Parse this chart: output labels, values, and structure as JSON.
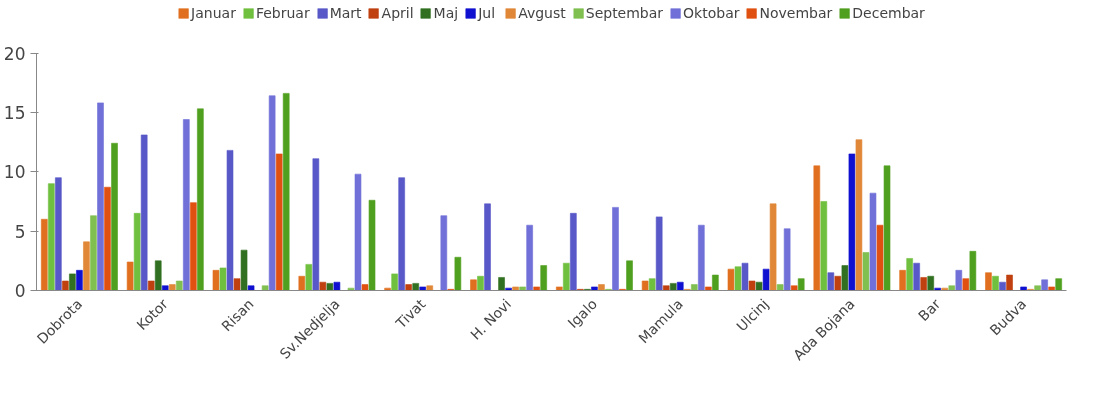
{
  "chart_data": {
    "type": "bar",
    "categories": [
      "Dobrota",
      "Kotor",
      "Risan",
      "Sv.Nedjelja",
      "Tivat",
      "H. Novi",
      "Igalo",
      "Mamula",
      "Ulcinj",
      "Ada Bojana",
      "Bar",
      "Budva"
    ],
    "series": [
      {
        "name": "Januar",
        "color": "#e07020",
        "values": [
          6.0,
          2.4,
          1.7,
          1.2,
          0.2,
          0.9,
          0.3,
          0.8,
          1.8,
          10.5,
          1.7,
          1.5
        ]
      },
      {
        "name": "Februar",
        "color": "#70c040",
        "values": [
          9.0,
          6.5,
          1.9,
          2.2,
          1.4,
          1.2,
          2.3,
          1.0,
          2.0,
          7.5,
          2.7,
          1.2
        ]
      },
      {
        "name": "Mart",
        "color": "#5858c8",
        "values": [
          9.5,
          13.1,
          11.8,
          11.1,
          9.5,
          7.3,
          6.5,
          6.2,
          2.3,
          1.5,
          2.3,
          0.7
        ]
      },
      {
        "name": "April",
        "color": "#c04010",
        "values": [
          0.8,
          0.8,
          1.0,
          0.7,
          0.5,
          0.0,
          0.1,
          0.4,
          0.8,
          1.2,
          1.1,
          1.3
        ]
      },
      {
        "name": "Maj",
        "color": "#307020",
        "values": [
          1.4,
          2.5,
          3.4,
          0.6,
          0.6,
          1.1,
          0.1,
          0.6,
          0.7,
          2.1,
          1.2,
          0.0
        ]
      },
      {
        "name": "Jul",
        "color": "#1010d0",
        "values": [
          1.7,
          0.4,
          0.4,
          0.7,
          0.3,
          0.2,
          0.3,
          0.7,
          1.8,
          11.5,
          0.2,
          0.3
        ]
      },
      {
        "name": "Avgust",
        "color": "#e08838",
        "values": [
          4.1,
          0.5,
          0.0,
          0.0,
          0.4,
          0.3,
          0.5,
          0.1,
          7.3,
          12.7,
          0.2,
          0.1
        ]
      },
      {
        "name": "Septembar",
        "color": "#80c050",
        "values": [
          6.3,
          0.8,
          0.4,
          0.2,
          0.0,
          0.3,
          0.1,
          0.5,
          0.5,
          3.2,
          0.4,
          0.4
        ]
      },
      {
        "name": "Oktobar",
        "color": "#7070d8",
        "values": [
          15.8,
          14.4,
          16.4,
          9.8,
          6.3,
          5.5,
          7.0,
          5.5,
          5.2,
          8.2,
          1.7,
          0.9
        ]
      },
      {
        "name": "Novembar",
        "color": "#e05010",
        "values": [
          8.7,
          7.4,
          11.5,
          0.5,
          0.1,
          0.3,
          0.1,
          0.3,
          0.4,
          5.5,
          1.0,
          0.3
        ]
      },
      {
        "name": "Decembar",
        "color": "#50a020",
        "values": [
          12.4,
          15.3,
          16.6,
          7.6,
          2.8,
          2.1,
          2.5,
          1.3,
          1.0,
          10.5,
          3.3,
          1.0
        ]
      }
    ],
    "ylim": [
      0,
      20
    ],
    "yticks": [
      0,
      5,
      10,
      15,
      20
    ],
    "grid": false,
    "legend": "top"
  }
}
